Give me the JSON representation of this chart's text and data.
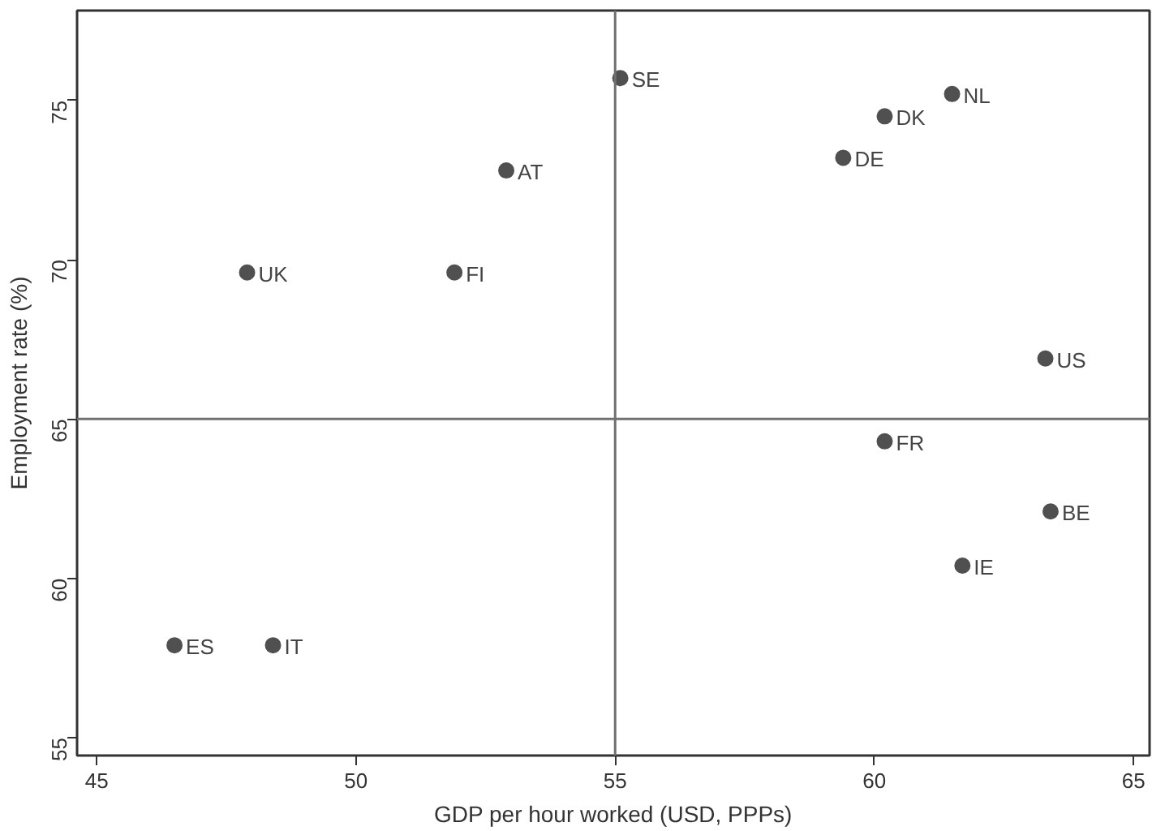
{
  "chart_data": {
    "type": "scatter",
    "xlabel": "GDP per hour worked (USD, PPPs)",
    "ylabel": "Employment rate (%)",
    "x": [
      52.9,
      47.9,
      51.9,
      46.5,
      48.4,
      55.1,
      61.5,
      60.2,
      59.4,
      63.3,
      60.2,
      63.4,
      61.7
    ],
    "series": [
      {
        "color": "#505050",
        "values": [
          72.8,
          69.6,
          69.6,
          57.9,
          57.9,
          75.7,
          75.2,
          74.5,
          73.2,
          66.9,
          64.3,
          62.1,
          60.4
        ]
      }
    ],
    "annotations": [
      {
        "text": "AT",
        "x": 52.9,
        "y": 72.8
      },
      {
        "text": "UK",
        "x": 47.9,
        "y": 69.6
      },
      {
        "text": "FI",
        "x": 51.9,
        "y": 69.6
      },
      {
        "text": "ES",
        "x": 46.5,
        "y": 57.9
      },
      {
        "text": "IT",
        "x": 48.4,
        "y": 57.9
      },
      {
        "text": "SE",
        "x": 55.1,
        "y": 75.7
      },
      {
        "text": "NL",
        "x": 61.5,
        "y": 75.2
      },
      {
        "text": "DK",
        "x": 60.2,
        "y": 74.5
      },
      {
        "text": "DE",
        "x": 59.4,
        "y": 73.2
      },
      {
        "text": "US",
        "x": 63.3,
        "y": 66.9
      },
      {
        "text": "FR",
        "x": 60.2,
        "y": 64.3
      },
      {
        "text": "BE",
        "x": 63.4,
        "y": 62.1
      },
      {
        "text": "IE",
        "x": 61.7,
        "y": 60.4
      }
    ],
    "ref_lines": [
      {
        "axis": "x",
        "value": 55,
        "color": "#707070"
      },
      {
        "axis": "y",
        "value": 65,
        "color": "#707070"
      }
    ],
    "xlim": [
      44.62,
      65.31
    ],
    "ylim": [
      54.44,
      77.82
    ],
    "xticks": [
      45,
      50,
      55,
      60,
      65
    ],
    "yticks": [
      55,
      60,
      65,
      70,
      75
    ],
    "grid": false,
    "marker": "circle"
  }
}
